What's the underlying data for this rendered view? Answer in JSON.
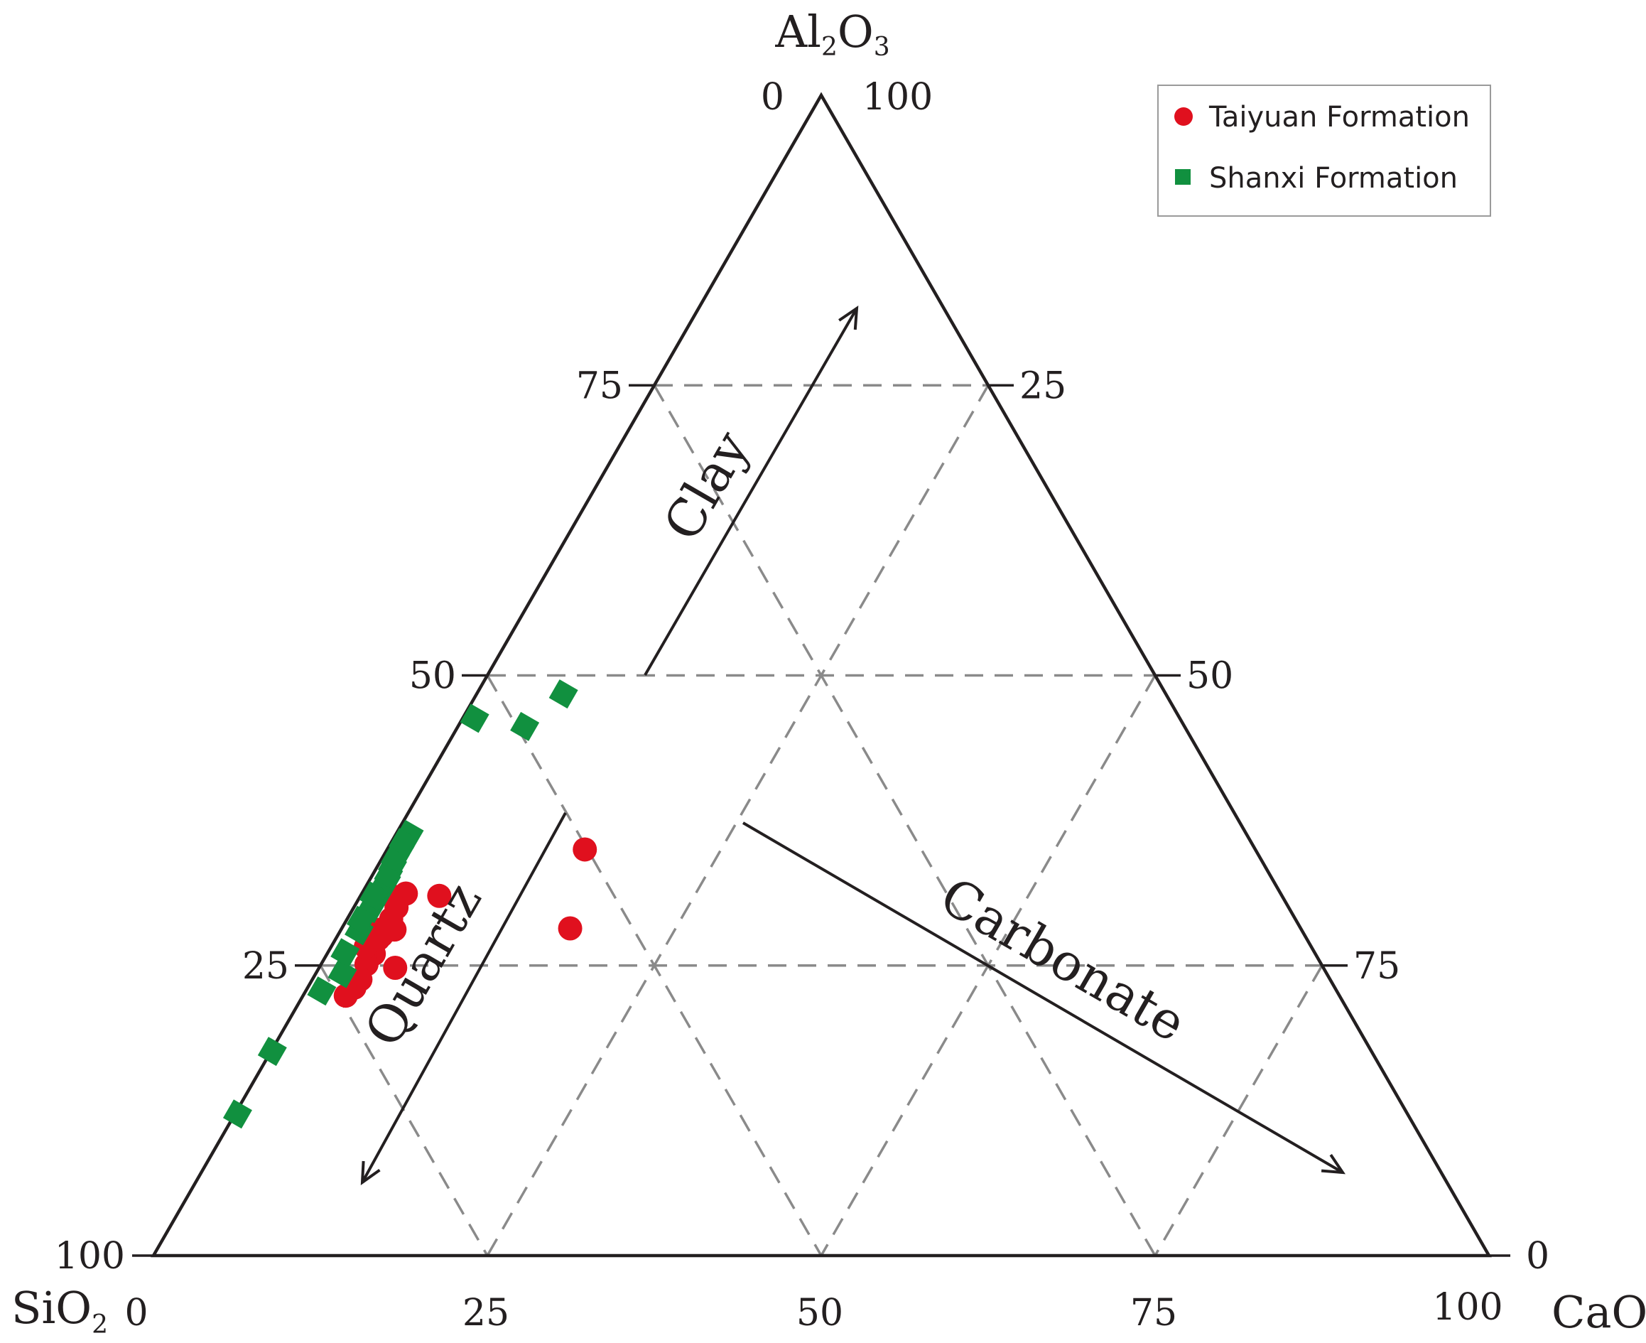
{
  "chart_data": {
    "type": "ternary-scatter",
    "corners": {
      "top": "Al2O3",
      "left": "SiO2",
      "right": "CaO"
    },
    "corner_labels": {
      "top": {
        "main": "Al",
        "sub1": "2",
        "mid": "O",
        "sub2": "3"
      },
      "left": {
        "main": "SiO",
        "sub": "2"
      },
      "right": {
        "main": "CaO"
      }
    },
    "grid": true,
    "grid_values": [
      25,
      50,
      75
    ],
    "tick_labels": {
      "left_axis": [
        "25",
        "50",
        "75"
      ],
      "right_axis": [
        "75",
        "50",
        "25"
      ],
      "bottom_axis": [
        "25",
        "50",
        "75"
      ],
      "top_left": "0",
      "top_right": "100",
      "bottom_left_side": "100",
      "bottom_left_below": "0",
      "bottom_right_side": "0",
      "bottom_right_below": "100"
    },
    "annotations": [
      {
        "text": "Clay",
        "direction": "toward Al2O3"
      },
      {
        "text": "Quartz",
        "direction": "toward SiO2"
      },
      {
        "text": "Carbonate",
        "direction": "toward CaO"
      }
    ],
    "legend": {
      "placement": "top-right",
      "entries": [
        "Taiyuan Formation",
        "Shanxi Formation"
      ]
    },
    "series": [
      {
        "name": "Taiyuan Formation",
        "color": "#e0101e",
        "marker": "circle",
        "points": [
          {
            "SiO2": 66.4,
            "Al2O3": 30.9,
            "CaO": 2.7
          },
          {
            "SiO2": 65.5,
            "Al2O3": 31.2,
            "CaO": 3.3
          },
          {
            "SiO2": 66.8,
            "Al2O3": 30.0,
            "CaO": 3.2
          },
          {
            "SiO2": 67.7,
            "Al2O3": 29.0,
            "CaO": 3.3
          },
          {
            "SiO2": 69.1,
            "Al2O3": 27.6,
            "CaO": 3.3
          },
          {
            "SiO2": 70.5,
            "Al2O3": 26.0,
            "CaO": 3.5
          },
          {
            "SiO2": 71.5,
            "Al2O3": 25.1,
            "CaO": 3.4
          },
          {
            "SiO2": 72.6,
            "Al2O3": 23.8,
            "CaO": 3.6
          },
          {
            "SiO2": 67.9,
            "Al2O3": 28.1,
            "CaO": 4.0
          },
          {
            "SiO2": 70.8,
            "Al2O3": 26.6,
            "CaO": 2.6
          },
          {
            "SiO2": 73.4,
            "Al2O3": 23.1,
            "CaO": 3.5
          },
          {
            "SiO2": 69.5,
            "Al2O3": 24.8,
            "CaO": 5.7
          },
          {
            "SiO2": 68.9,
            "Al2O3": 28.1,
            "CaO": 3.0
          },
          {
            "SiO2": 74.4,
            "Al2O3": 22.4,
            "CaO": 3.2
          },
          {
            "SiO2": 69.5,
            "Al2O3": 27.3,
            "CaO": 3.2
          },
          {
            "SiO2": 63.1,
            "Al2O3": 31.0,
            "CaO": 5.9
          },
          {
            "SiO2": 50.2,
            "Al2O3": 35.0,
            "CaO": 14.8
          },
          {
            "SiO2": 54.7,
            "Al2O3": 28.2,
            "CaO": 17.1
          }
        ]
      },
      {
        "name": "Shanxi Formation",
        "color": "#11903f",
        "marker": "square",
        "points": [
          {
            "SiO2": 87.6,
            "Al2O3": 12.2,
            "CaO": 0.2
          },
          {
            "SiO2": 82.3,
            "Al2O3": 17.6,
            "CaO": 0.1
          },
          {
            "SiO2": 76.0,
            "Al2O3": 22.8,
            "CaO": 1.2
          },
          {
            "SiO2": 73.7,
            "Al2O3": 24.3,
            "CaO": 2.0
          },
          {
            "SiO2": 72.6,
            "Al2O3": 26.1,
            "CaO": 1.3
          },
          {
            "SiO2": 70.6,
            "Al2O3": 28.0,
            "CaO": 1.4
          },
          {
            "SiO2": 68.8,
            "Al2O3": 29.9,
            "CaO": 1.3
          },
          {
            "SiO2": 67.3,
            "Al2O3": 31.4,
            "CaO": 1.3
          },
          {
            "SiO2": 66.4,
            "Al2O3": 32.3,
            "CaO": 1.3
          },
          {
            "SiO2": 65.3,
            "Al2O3": 33.6,
            "CaO": 1.1
          },
          {
            "SiO2": 64.1,
            "Al2O3": 34.9,
            "CaO": 1.0
          },
          {
            "SiO2": 62.7,
            "Al2O3": 36.3,
            "CaO": 1.0
          },
          {
            "SiO2": 70.0,
            "Al2O3": 28.9,
            "CaO": 1.1
          },
          {
            "SiO2": 68.0,
            "Al2O3": 31.0,
            "CaO": 1.0
          },
          {
            "SiO2": 66.0,
            "Al2O3": 32.8,
            "CaO": 1.2
          },
          {
            "SiO2": 64.8,
            "Al2O3": 34.2,
            "CaO": 1.0
          },
          {
            "SiO2": 63.5,
            "Al2O3": 35.6,
            "CaO": 0.9
          },
          {
            "SiO2": 52.8,
            "Al2O3": 46.3,
            "CaO": 0.9
          },
          {
            "SiO2": 49.4,
            "Al2O3": 45.6,
            "CaO": 5.0
          },
          {
            "SiO2": 45.1,
            "Al2O3": 48.4,
            "CaO": 6.5
          }
        ]
      }
    ]
  }
}
